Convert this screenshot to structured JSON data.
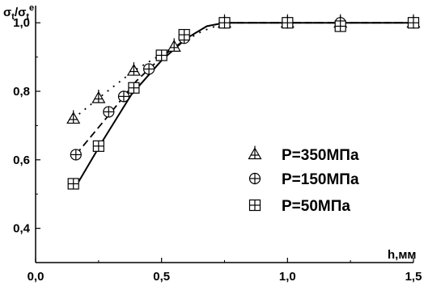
{
  "chart_data": {
    "type": "scatter",
    "xlabel": "h,мм",
    "ylabel_main": "σ",
    "ylabel_main_sub": "t",
    "ylabel_sep": "/σ",
    "ylabel_den_sub": "t",
    "ylabel_den_sup": "e",
    "xlim": [
      0.0,
      1.5
    ],
    "ylim": [
      0.3,
      1.05
    ],
    "x_ticks": [
      0.0,
      0.5,
      1.0,
      1.5
    ],
    "x_tick_labels": [
      "0,0",
      "0,5",
      "1,0",
      "1,5"
    ],
    "y_ticks": [
      0.4,
      0.6,
      0.8,
      1.0
    ],
    "y_tick_labels": [
      "0,4",
      "0,6",
      "0,8",
      "1,0"
    ],
    "grid": false,
    "legend_position": "right",
    "series": [
      {
        "name": "P=350МПа",
        "marker": "triangle-cross",
        "line": "dotted",
        "points": [
          [
            0.15,
            0.72
          ],
          [
            0.25,
            0.78
          ],
          [
            0.39,
            0.86
          ],
          [
            0.55,
            0.93
          ],
          [
            0.75,
            1.0
          ],
          [
            1.0,
            1.0
          ],
          [
            1.21,
            1.0
          ],
          [
            1.5,
            1.0
          ]
        ],
        "curve": [
          [
            0.15,
            0.72
          ],
          [
            0.25,
            0.78
          ],
          [
            0.39,
            0.86
          ],
          [
            0.55,
            0.93
          ],
          [
            0.66,
            0.975
          ],
          [
            0.75,
            1.0
          ],
          [
            1.0,
            1.0
          ],
          [
            1.5,
            1.0
          ]
        ]
      },
      {
        "name": "P=150МПа",
        "marker": "circle-cross",
        "line": "dashed",
        "points": [
          [
            0.16,
            0.615
          ],
          [
            0.29,
            0.74
          ],
          [
            0.35,
            0.785
          ],
          [
            0.45,
            0.865
          ],
          [
            0.59,
            0.955
          ],
          [
            0.75,
            1.0
          ],
          [
            1.0,
            1.0
          ],
          [
            1.21,
            1.0
          ],
          [
            1.5,
            1.0
          ]
        ],
        "curve": [
          [
            0.16,
            0.615
          ],
          [
            0.29,
            0.73
          ],
          [
            0.4,
            0.83
          ],
          [
            0.5,
            0.9
          ],
          [
            0.6,
            0.955
          ],
          [
            0.68,
            0.99
          ],
          [
            0.75,
            1.0
          ],
          [
            1.0,
            1.0
          ],
          [
            1.5,
            1.0
          ]
        ]
      },
      {
        "name": "P=50МПа",
        "marker": "square-cross",
        "line": "solid",
        "points": [
          [
            0.15,
            0.53
          ],
          [
            0.25,
            0.64
          ],
          [
            0.39,
            0.81
          ],
          [
            0.5,
            0.905
          ],
          [
            0.59,
            0.965
          ],
          [
            0.75,
            1.0
          ],
          [
            1.0,
            1.0
          ],
          [
            1.21,
            0.99
          ],
          [
            1.5,
            1.0
          ]
        ],
        "curve": [
          [
            0.17,
            0.535
          ],
          [
            0.27,
            0.66
          ],
          [
            0.38,
            0.79
          ],
          [
            0.5,
            0.89
          ],
          [
            0.6,
            0.955
          ],
          [
            0.68,
            0.99
          ],
          [
            0.75,
            1.0
          ],
          [
            1.0,
            1.0
          ],
          [
            1.5,
            1.0
          ]
        ]
      }
    ]
  }
}
